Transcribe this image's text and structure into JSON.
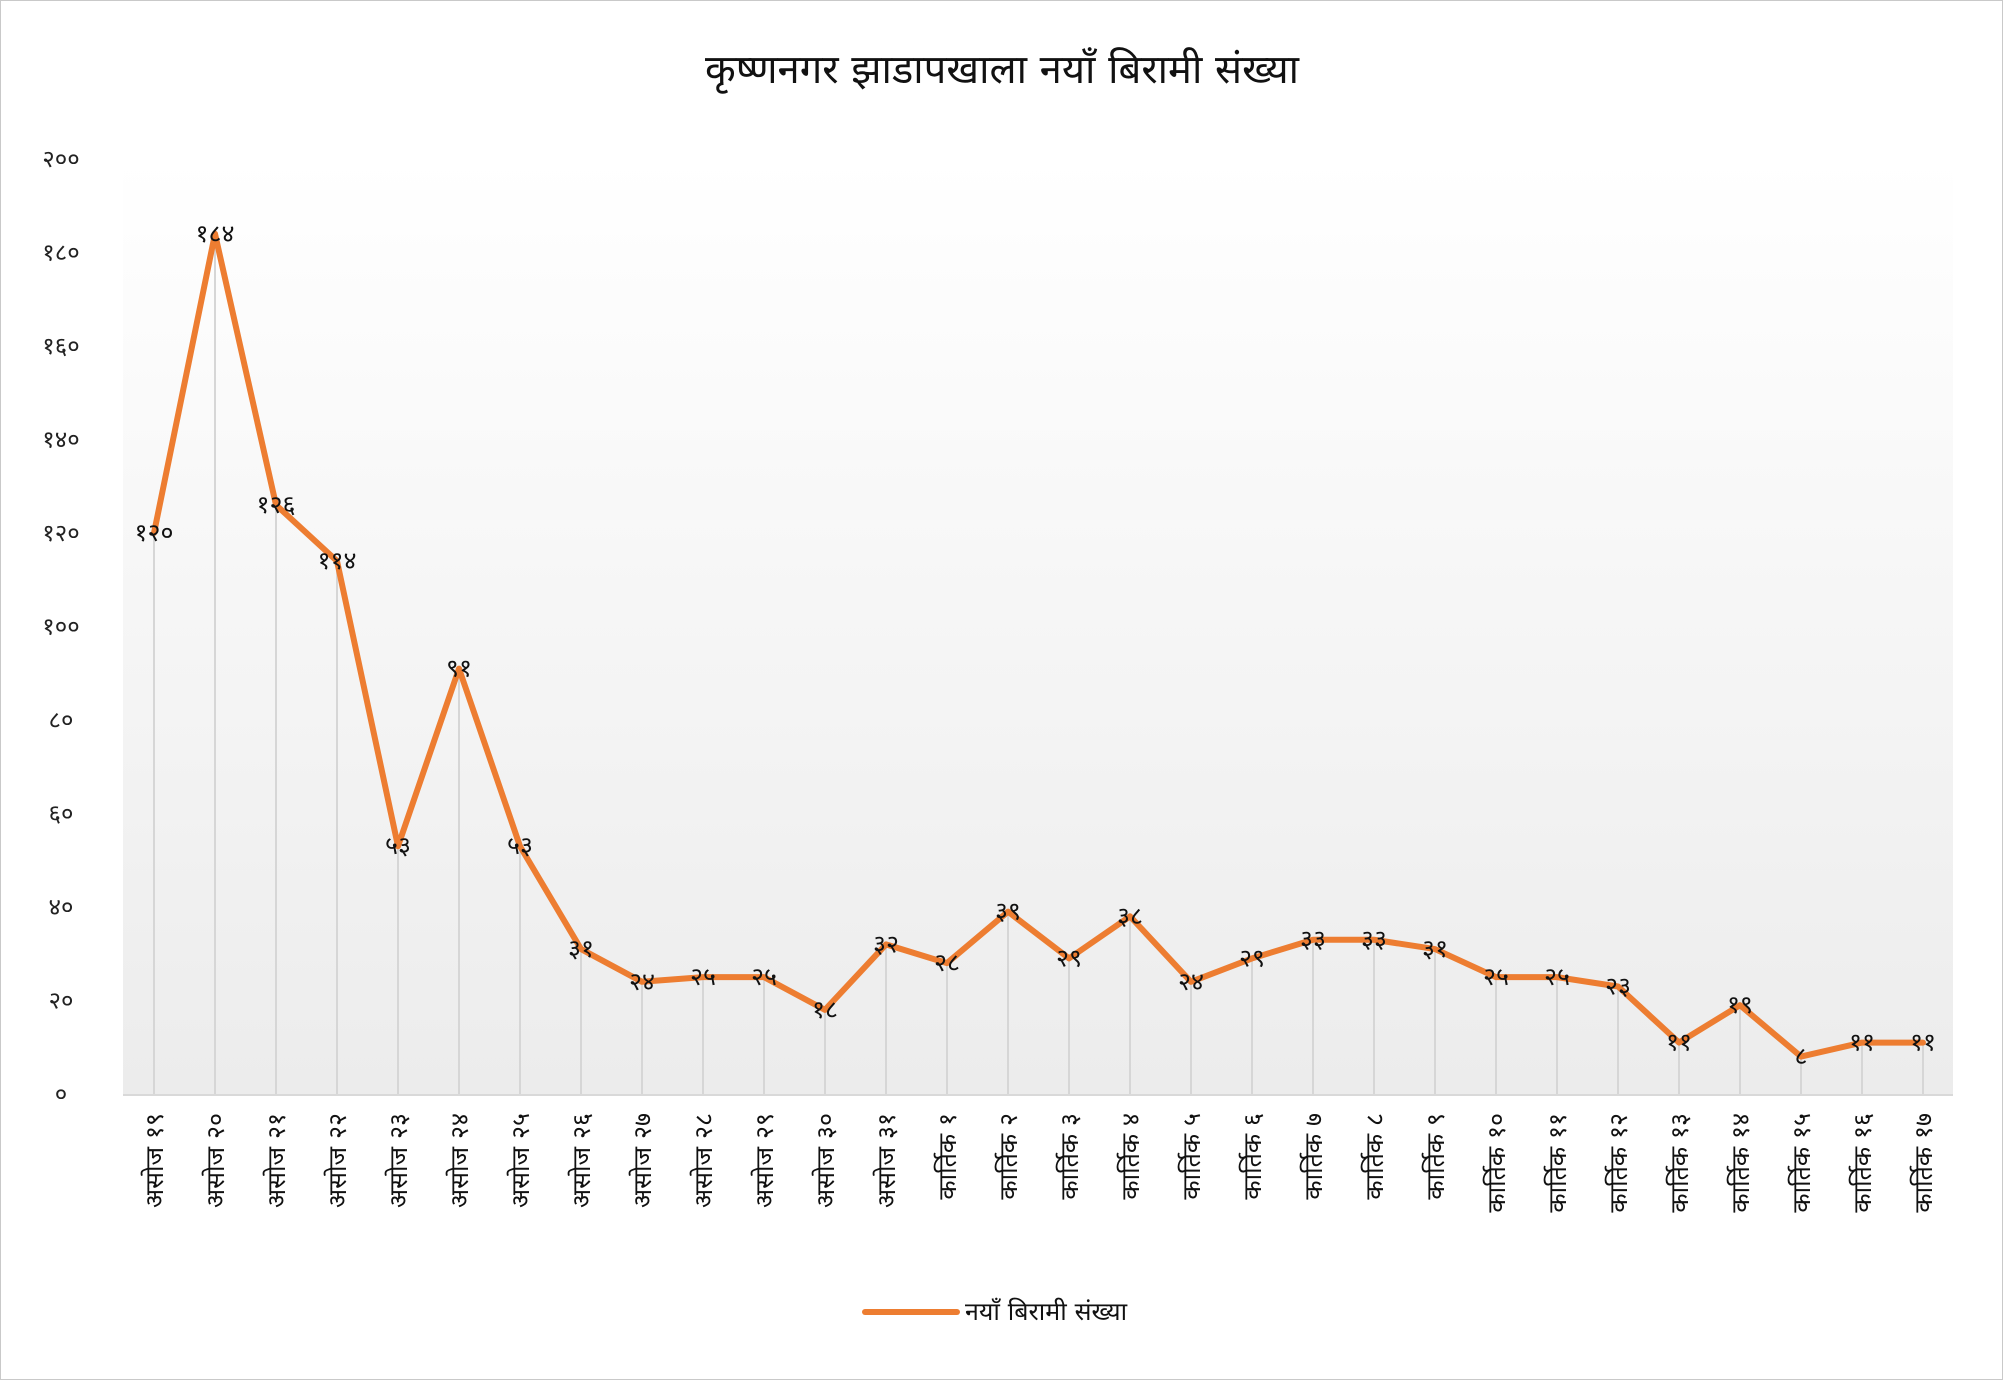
{
  "chart_data": {
    "type": "line",
    "title": "कृष्णनगर झाडापखाला नयाँ बिरामी संख्या",
    "xlabel": "",
    "ylabel": "",
    "ylim": [
      0,
      200
    ],
    "yticks": [
      0,
      20,
      40,
      60,
      80,
      100,
      120,
      140,
      160,
      180,
      200
    ],
    "ytick_labels": [
      "०",
      "२०",
      "४०",
      "६०",
      "८०",
      "१००",
      "१२०",
      "१४०",
      "१६०",
      "१८०",
      "२००"
    ],
    "categories": [
      "असोज १९",
      "असोज २०",
      "असोज २१",
      "असोज २२",
      "असोज २३",
      "असोज २४",
      "असोज २५",
      "असोज २६",
      "असोज २७",
      "असोज २८",
      "असोज २९",
      "असोज ३०",
      "असोज ३१",
      "कार्तिक १",
      "कार्तिक २",
      "कार्तिक ३",
      "कार्तिक ४",
      "कार्तिक ५",
      "कार्तिक ६",
      "कार्तिक ७",
      "कार्तिक ८",
      "कार्तिक ९",
      "कार्तिक १०",
      "कार्तिक ११",
      "कार्तिक १२",
      "कार्तिक १३",
      "कार्तिक १४",
      "कार्तिक १५",
      "कार्तिक १६",
      "कार्तिक १७"
    ],
    "series": [
      {
        "name": "नयाँ बिरामी संख्या",
        "color": "#ed7d31",
        "values": [
          120,
          184,
          126,
          114,
          53,
          91,
          53,
          31,
          24,
          25,
          25,
          18,
          32,
          28,
          39,
          29,
          38,
          24,
          29,
          33,
          33,
          31,
          25,
          25,
          23,
          11,
          19,
          8,
          11,
          11
        ],
        "data_labels": [
          "१२०",
          "१८४",
          "१२६",
          "११४",
          "५३",
          "९१",
          "५३",
          "३१",
          "२४",
          "२५",
          "२५",
          "१८",
          "३२",
          "२८",
          "३९",
          "२९",
          "३८",
          "२४",
          "२९",
          "३३",
          "३३",
          "३१",
          "२५",
          "२५",
          "२३",
          "११",
          "१९",
          "८",
          "११",
          "११"
        ]
      }
    ],
    "grid": false,
    "drop_lines": true,
    "legend": "bottom",
    "colors": {
      "line": "#ed7d31",
      "drop_line": "#d6d6d6",
      "axis": "#d9d9d9",
      "background_gradient_top": "#ffffff",
      "background_gradient_bottom": "#ececec"
    }
  }
}
